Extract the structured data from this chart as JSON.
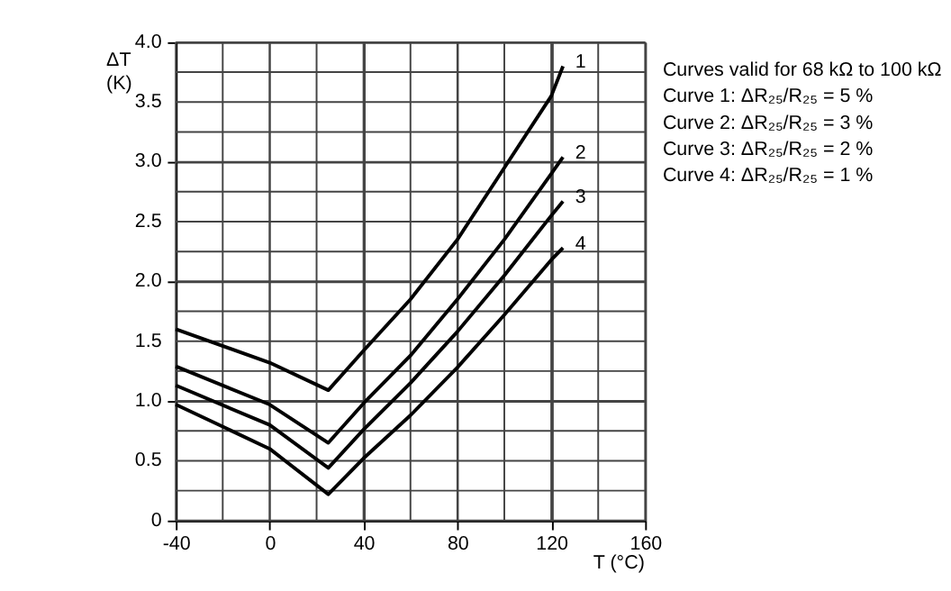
{
  "chart_data": {
    "type": "line",
    "xlabel": "T (°C)",
    "ylabel": "ΔT (K)",
    "x": [
      -40,
      0,
      25,
      40,
      60,
      80,
      100,
      120,
      125
    ],
    "series": [
      {
        "name": "1",
        "color": "#000000",
        "values": [
          1.6,
          1.32,
          1.09,
          1.42,
          1.85,
          2.35,
          2.95,
          3.55,
          3.8
        ]
      },
      {
        "name": "2",
        "color": "#000000",
        "values": [
          1.29,
          0.97,
          0.65,
          0.98,
          1.38,
          1.85,
          2.35,
          2.9,
          3.04
        ]
      },
      {
        "name": "3",
        "color": "#000000",
        "values": [
          1.13,
          0.8,
          0.44,
          0.76,
          1.15,
          1.58,
          2.05,
          2.55,
          2.67
        ]
      },
      {
        "name": "4",
        "color": "#000000",
        "values": [
          0.97,
          0.6,
          0.22,
          0.52,
          0.88,
          1.28,
          1.72,
          2.18,
          2.28
        ]
      }
    ],
    "xlim": [
      -40,
      160
    ],
    "xticks": [
      -40,
      {
        "value": -20,
        "label": null
      },
      0,
      {
        "value": 20,
        "label": null
      },
      40,
      {
        "value": 60,
        "label": null
      },
      80,
      {
        "value": 100,
        "label": null
      },
      120,
      {
        "value": 140,
        "label": null
      },
      160
    ],
    "ylim": [
      0,
      4
    ],
    "yticks": [
      0,
      {
        "value": 0.25,
        "label": null
      },
      0.5,
      {
        "value": 0.75,
        "label": null
      },
      {
        "value": 1,
        "label": "1.0"
      },
      {
        "value": 1.25,
        "label": null
      },
      1.5,
      {
        "value": 1.75,
        "label": null
      },
      {
        "value": 2,
        "label": "2.0"
      },
      {
        "value": 2.25,
        "label": null
      },
      2.5,
      {
        "value": 2.75,
        "label": null
      },
      {
        "value": 3,
        "label": "3.0"
      },
      {
        "value": 3.25,
        "label": null
      },
      3.5,
      {
        "value": 3.75,
        "label": null
      },
      {
        "value": 4,
        "label": "4.0"
      }
    ],
    "grid": true,
    "marker": "none",
    "line_style": "solid",
    "annotations": [
      "Curves valid for 68 kΩ to 100 kΩ",
      "Curve 1: ΔR₂₅/R₂₅ = 5 %",
      "Curve 2: ΔR₂₅/R₂₅ = 3 %",
      "Curve 3: ΔR₂₅/R₂₅ = 2 %",
      "Curve 4: ΔR₂₅/R₂₅ = 1 %"
    ]
  }
}
